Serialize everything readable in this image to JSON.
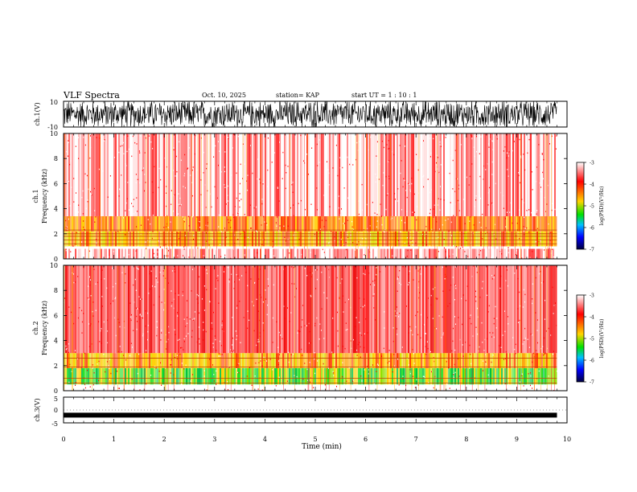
{
  "header": {
    "title": "VLF Spectra",
    "date": "Oct. 10, 2025",
    "station": "station= KAP",
    "start": "start  UT =  1 : 10 : 1"
  },
  "colorbar": {
    "label": "log(PSD)(V²/Hz)",
    "ticks": [
      "-3",
      "-4",
      "-5",
      "-6",
      "-7"
    ],
    "stops": [
      "#ffffff",
      "#ff0000",
      "#ffd400",
      "#00e000",
      "#00c0ff",
      "#0000ff",
      "#000040"
    ]
  },
  "chart_data": [
    {
      "type": "line",
      "name": "ch1-waveform",
      "ylabel": "ch.1(V)",
      "ylim": [
        -10,
        10
      ],
      "ytick_labels": [
        "10",
        "-10"
      ],
      "x_extent_min": [
        0,
        9.8
      ],
      "description_values": {
        "amplitude_peak": 10
      }
    },
    {
      "type": "heatmap",
      "name": "ch1-spectrogram",
      "ylabel_channel": "ch.1",
      "ylabel": "Frequency  (kHz)",
      "ylim": [
        0,
        10
      ],
      "ytick_labels": [
        "0",
        "2",
        "4",
        "6",
        "8",
        "10"
      ],
      "xlim": [
        0,
        10
      ],
      "log_psd_range": [
        -7,
        -3
      ],
      "bands_khz": [
        {
          "from": 0,
          "to": 0.8,
          "level": "high"
        },
        {
          "from": 1.0,
          "to": 2.2,
          "level": "yellow"
        },
        {
          "from": 2.2,
          "to": 3.4,
          "level": "yellow-orange"
        },
        {
          "from": 3.4,
          "to": 10,
          "level": "red-white"
        }
      ],
      "hum_lines_khz": [
        1.2,
        1.5,
        1.8,
        2.0,
        2.3
      ]
    },
    {
      "type": "heatmap",
      "name": "ch2-spectrogram",
      "ylabel_channel": "ch.2",
      "ylabel": "Frequency  (kHz)",
      "ylim": [
        0,
        10
      ],
      "ytick_labels": [
        "0",
        "2",
        "4",
        "6",
        "8",
        "10"
      ],
      "xlim": [
        0,
        10
      ],
      "log_psd_range": [
        -7,
        -3
      ],
      "bands_khz": [
        {
          "from": 0.5,
          "to": 1.8,
          "level": "green"
        },
        {
          "from": 1.8,
          "to": 3.0,
          "level": "yellow"
        },
        {
          "from": 3.0,
          "to": 10,
          "level": "red"
        }
      ],
      "hum_lines_khz": [
        0.6,
        1.0,
        1.9,
        2.6
      ]
    },
    {
      "type": "line",
      "name": "ch3-waveform",
      "ylabel": "ch.3(V)",
      "ylim": [
        -5,
        5
      ],
      "ytick_labels": [
        "5",
        "0",
        "-5"
      ],
      "xlim": [
        0,
        10
      ],
      "xlabel": "Time  (min)",
      "xtick_labels": [
        "0",
        "1",
        "2",
        "3",
        "4",
        "5",
        "6",
        "7",
        "8",
        "9",
        "10"
      ],
      "data_end_min": 9.8,
      "offset_v": -2
    }
  ]
}
